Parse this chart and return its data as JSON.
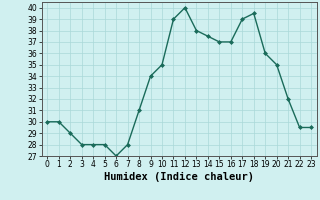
{
  "x": [
    0,
    1,
    2,
    3,
    4,
    5,
    6,
    7,
    8,
    9,
    10,
    11,
    12,
    13,
    14,
    15,
    16,
    17,
    18,
    19,
    20,
    21,
    22,
    23
  ],
  "y": [
    30,
    30,
    29,
    28,
    28,
    28,
    27,
    28,
    31,
    34,
    35,
    39,
    40,
    38,
    37.5,
    37,
    37,
    39,
    39.5,
    36,
    35,
    32,
    29.5,
    29.5
  ],
  "line_color": "#1a6b5a",
  "marker": "D",
  "marker_size": 2,
  "bg_color": "#d0f0f0",
  "grid_color": "#aad8d8",
  "xlabel": "Humidex (Indice chaleur)",
  "xlim": [
    -0.5,
    23.5
  ],
  "ylim": [
    27,
    40.5
  ],
  "yticks": [
    27,
    28,
    29,
    30,
    31,
    32,
    33,
    34,
    35,
    36,
    37,
    38,
    39,
    40
  ],
  "xticks": [
    0,
    1,
    2,
    3,
    4,
    5,
    6,
    7,
    8,
    9,
    10,
    11,
    12,
    13,
    14,
    15,
    16,
    17,
    18,
    19,
    20,
    21,
    22,
    23
  ],
  "spine_color": "#555555",
  "tick_fontsize": 5.5,
  "xlabel_fontsize": 7.5,
  "linewidth": 1.0
}
